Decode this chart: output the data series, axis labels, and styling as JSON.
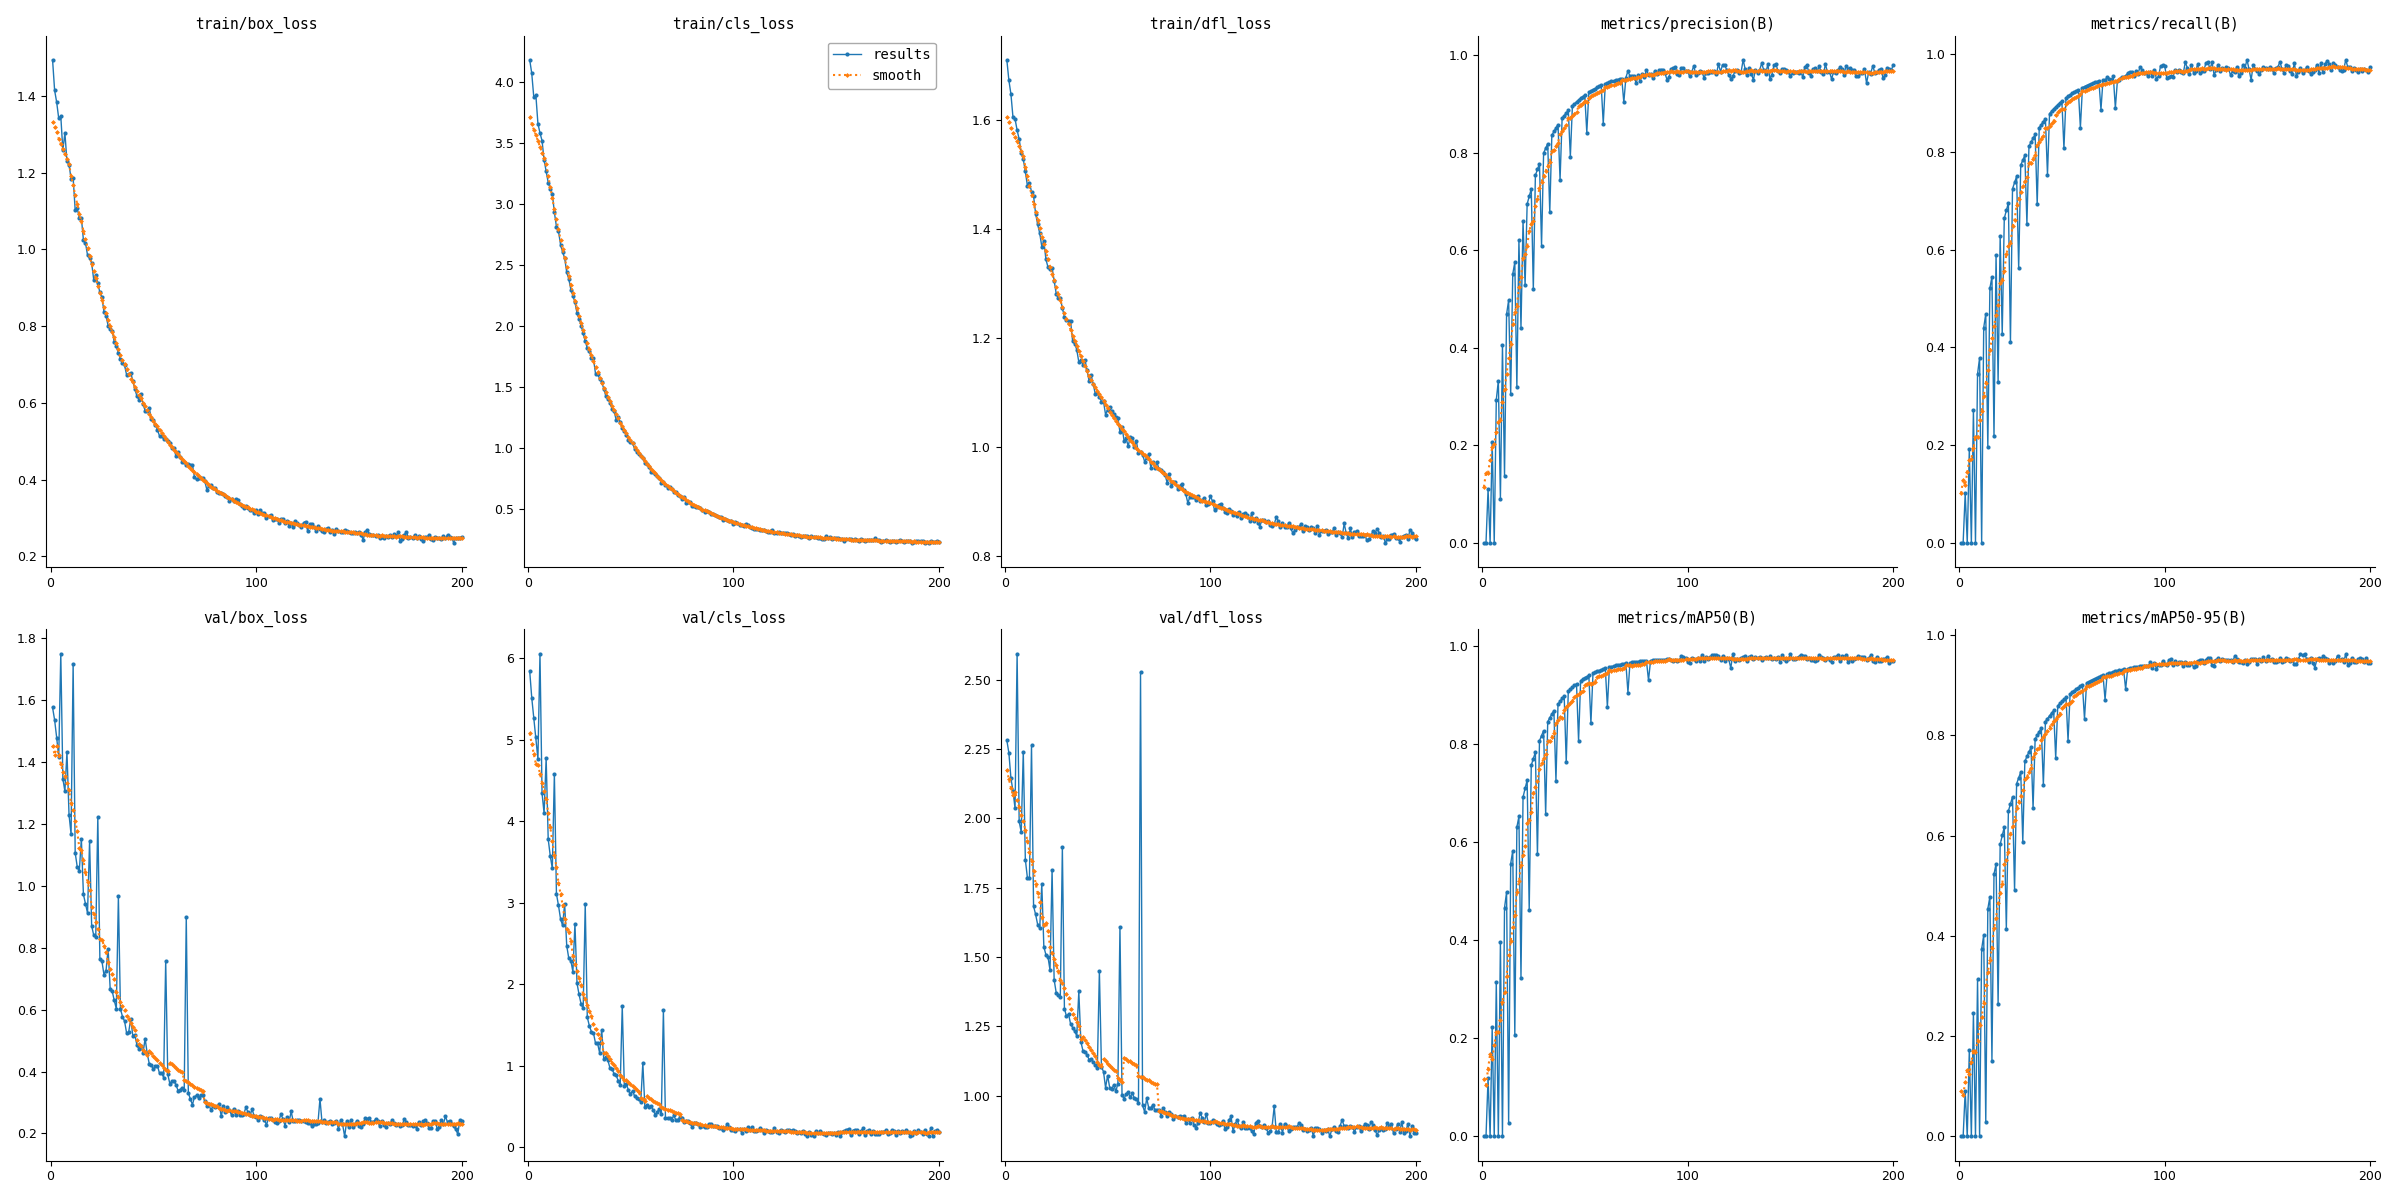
{
  "titles": [
    "train/box_loss",
    "train/cls_loss",
    "train/dfl_loss",
    "metrics/precision(B)",
    "metrics/recall(B)",
    "val/box_loss",
    "val/cls_loss",
    "val/dfl_loss",
    "metrics/mAP50(B)",
    "metrics/mAP50-95(B)"
  ],
  "line_color": "#1f77b4",
  "smooth_color": "#ff7f0e",
  "figsize": [
    24,
    12
  ],
  "dpi": 100,
  "n_epochs": 200,
  "xticks": [
    0,
    100,
    200
  ]
}
